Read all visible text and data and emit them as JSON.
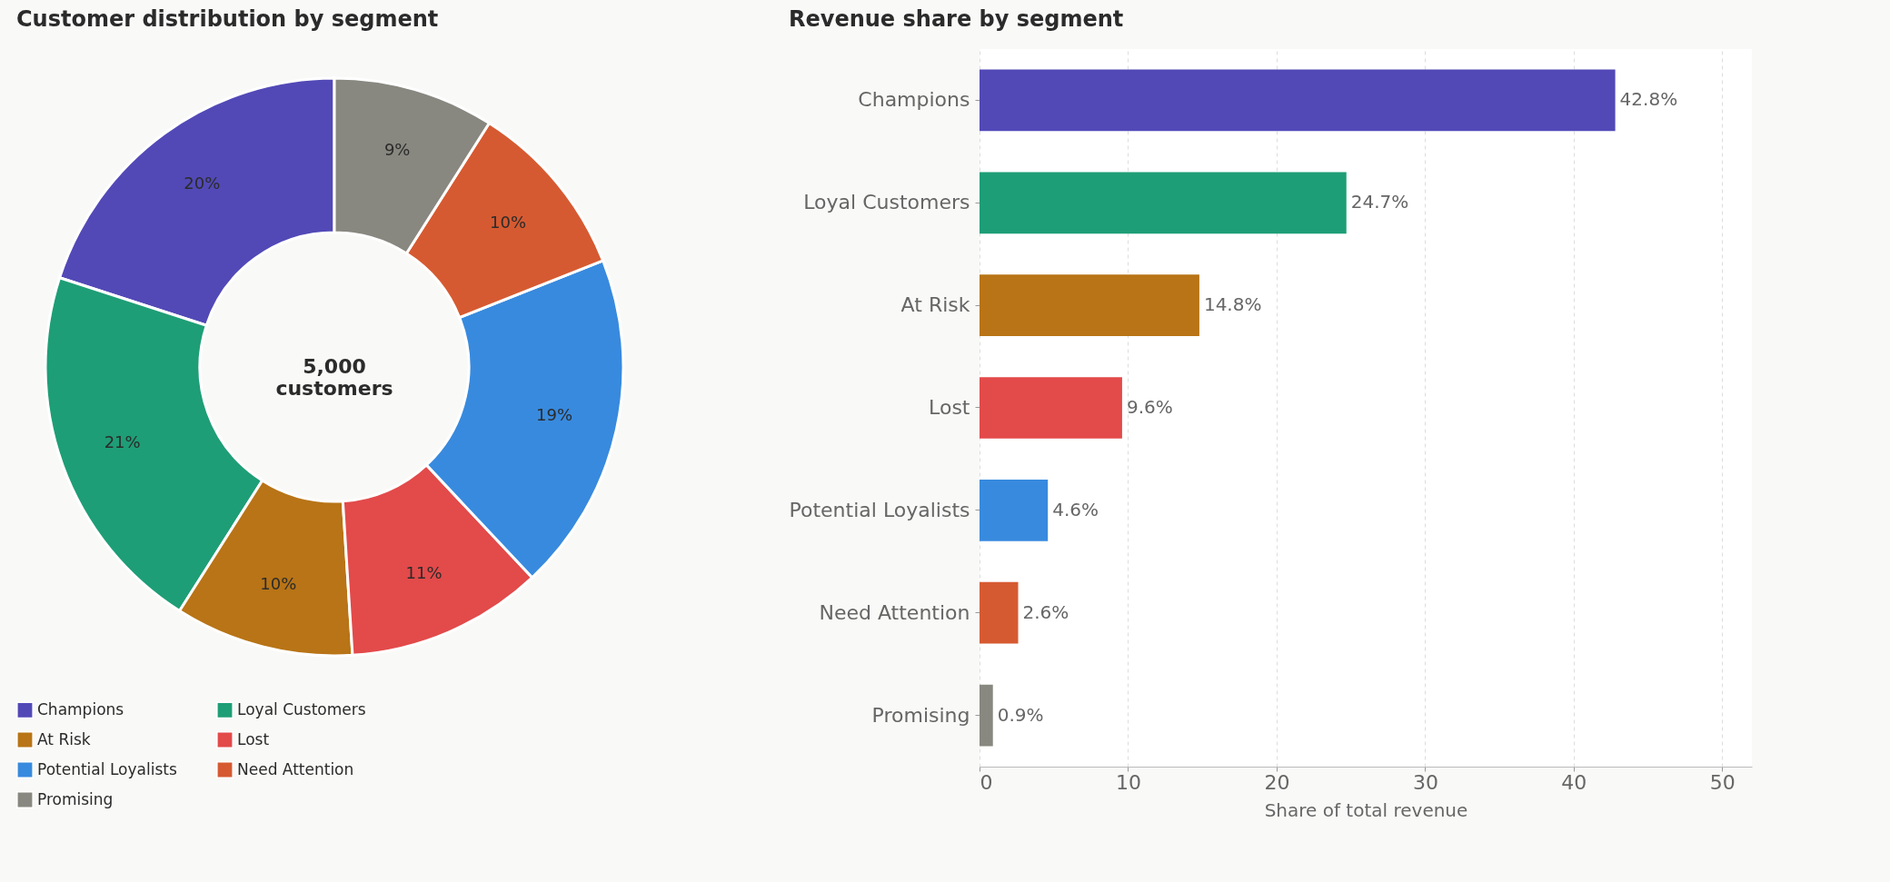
{
  "chart_data": [
    {
      "type": "donut",
      "title": "Customer distribution by segment",
      "categories": [
        "Champions",
        "Loyal Customers",
        "At Risk",
        "Lost",
        "Potential Loyalists",
        "Need Attention",
        "Promising"
      ],
      "values": [
        20,
        21,
        10,
        11,
        19,
        10,
        9
      ],
      "colors": [
        "#5249b7",
        "#1e9e76",
        "#b87416",
        "#e34a4a",
        "#388ade",
        "#d65a31",
        "#888880"
      ],
      "value_labels": [
        "20%",
        "21%",
        "10%",
        "11%",
        "19%",
        "10%",
        "9%"
      ],
      "annotations": [
        "5,000\ncustomers"
      ],
      "legend": "bottom"
    },
    {
      "type": "bar",
      "orientation": "horizontal",
      "title": "Revenue share by segment",
      "xlabel": "Share of total revenue",
      "categories": [
        "Champions",
        "Loyal Customers",
        "At Risk",
        "Lost",
        "Potential Loyalists",
        "Need Attention",
        "Promising"
      ],
      "values": [
        42.8,
        24.7,
        14.8,
        9.6,
        4.6,
        2.6,
        0.9
      ],
      "colors": [
        "#5249b7",
        "#1e9e76",
        "#b87416",
        "#e34a4a",
        "#388ade",
        "#d65a31",
        "#888880"
      ],
      "value_labels": [
        "42.8%",
        "24.7%",
        "14.8%",
        "9.6%",
        "4.6%",
        "2.6%",
        "0.9%"
      ],
      "xlim": [
        0,
        52
      ],
      "xticks": [
        0,
        10,
        20,
        30,
        40,
        50
      ],
      "grid": "x"
    }
  ]
}
